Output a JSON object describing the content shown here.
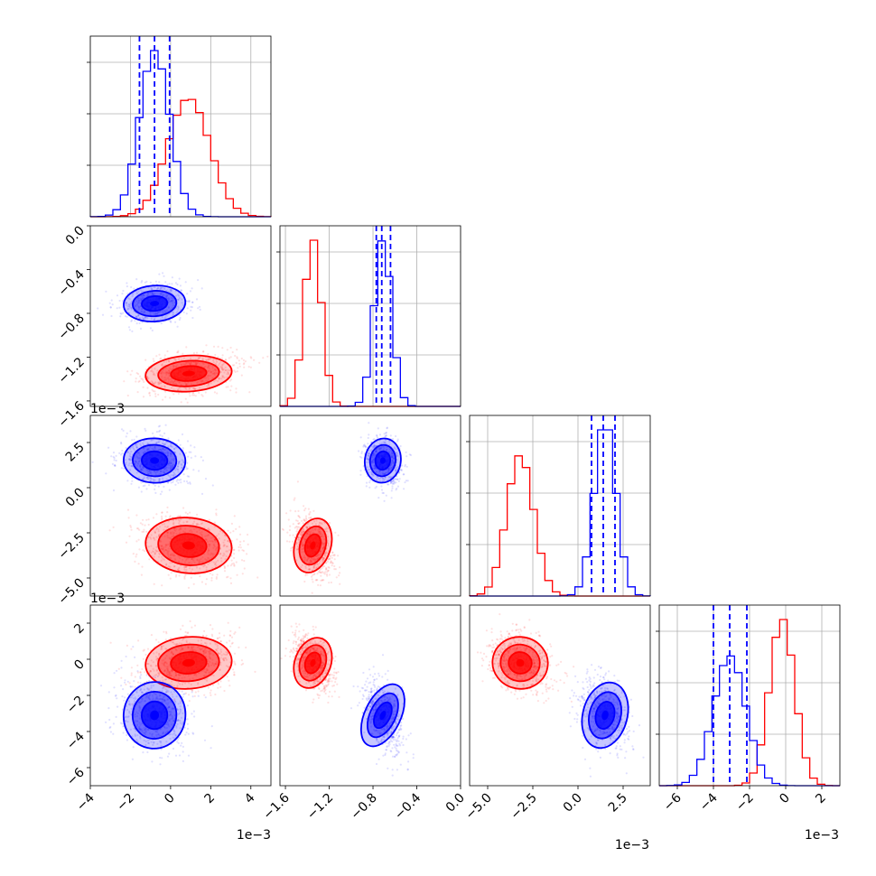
{
  "chart_data": {
    "type": "corner",
    "grid": true,
    "series_colors": [
      "#0000ff",
      "#ff0000"
    ],
    "quantile_line_color": "#0000ff",
    "params": [
      {
        "range": [
          -4,
          5
        ],
        "ticks": [
          -4,
          -2,
          0,
          2,
          4
        ],
        "tick_labels": [
          "−4",
          "−2",
          "0",
          "2",
          "4"
        ],
        "offset": "1e−3",
        "red": {
          "mean": 0.9,
          "sd": 1.05
        },
        "blue": {
          "mean": -0.8,
          "sd": 0.75
        },
        "quantiles": [
          -1.55,
          -0.8,
          -0.05
        ]
      },
      {
        "range": [
          -1.65,
          0.0
        ],
        "ticks": [
          -1.6,
          -1.2,
          -0.8,
          -0.4,
          0.0
        ],
        "tick_labels": [
          "−1.6",
          "−1.2",
          "−0.8",
          "−0.4",
          "0.0"
        ],
        "offset": "1e−3",
        "red": {
          "mean": -1.35,
          "sd": 0.08
        },
        "blue": {
          "mean": -0.71,
          "sd": 0.08
        },
        "quantiles": [
          -0.77,
          -0.72,
          -0.64
        ]
      },
      {
        "range": [
          -6,
          4
        ],
        "ticks": [
          -5.0,
          -2.5,
          0.0,
          2.5
        ],
        "tick_labels": [
          "−5.0",
          "−2.5",
          "0.0",
          "2.5"
        ],
        "offset": "1e−3",
        "red": {
          "mean": -3.2,
          "sd": 0.75
        },
        "blue": {
          "mean": 1.5,
          "sd": 0.6
        },
        "quantiles": [
          0.75,
          1.4,
          2.05
        ]
      },
      {
        "range": [
          -7,
          3
        ],
        "ticks": [
          -6,
          -4,
          -2,
          0,
          2
        ],
        "tick_labels": [
          "−6",
          "−4",
          "−2",
          "0",
          "2"
        ],
        "offset": "1e−3",
        "red": {
          "mean": -0.2,
          "sd": 0.7
        },
        "blue": {
          "mean": -3.1,
          "sd": 0.9
        },
        "quantiles": [
          -4.0,
          -3.1,
          -2.15
        ]
      }
    ]
  }
}
